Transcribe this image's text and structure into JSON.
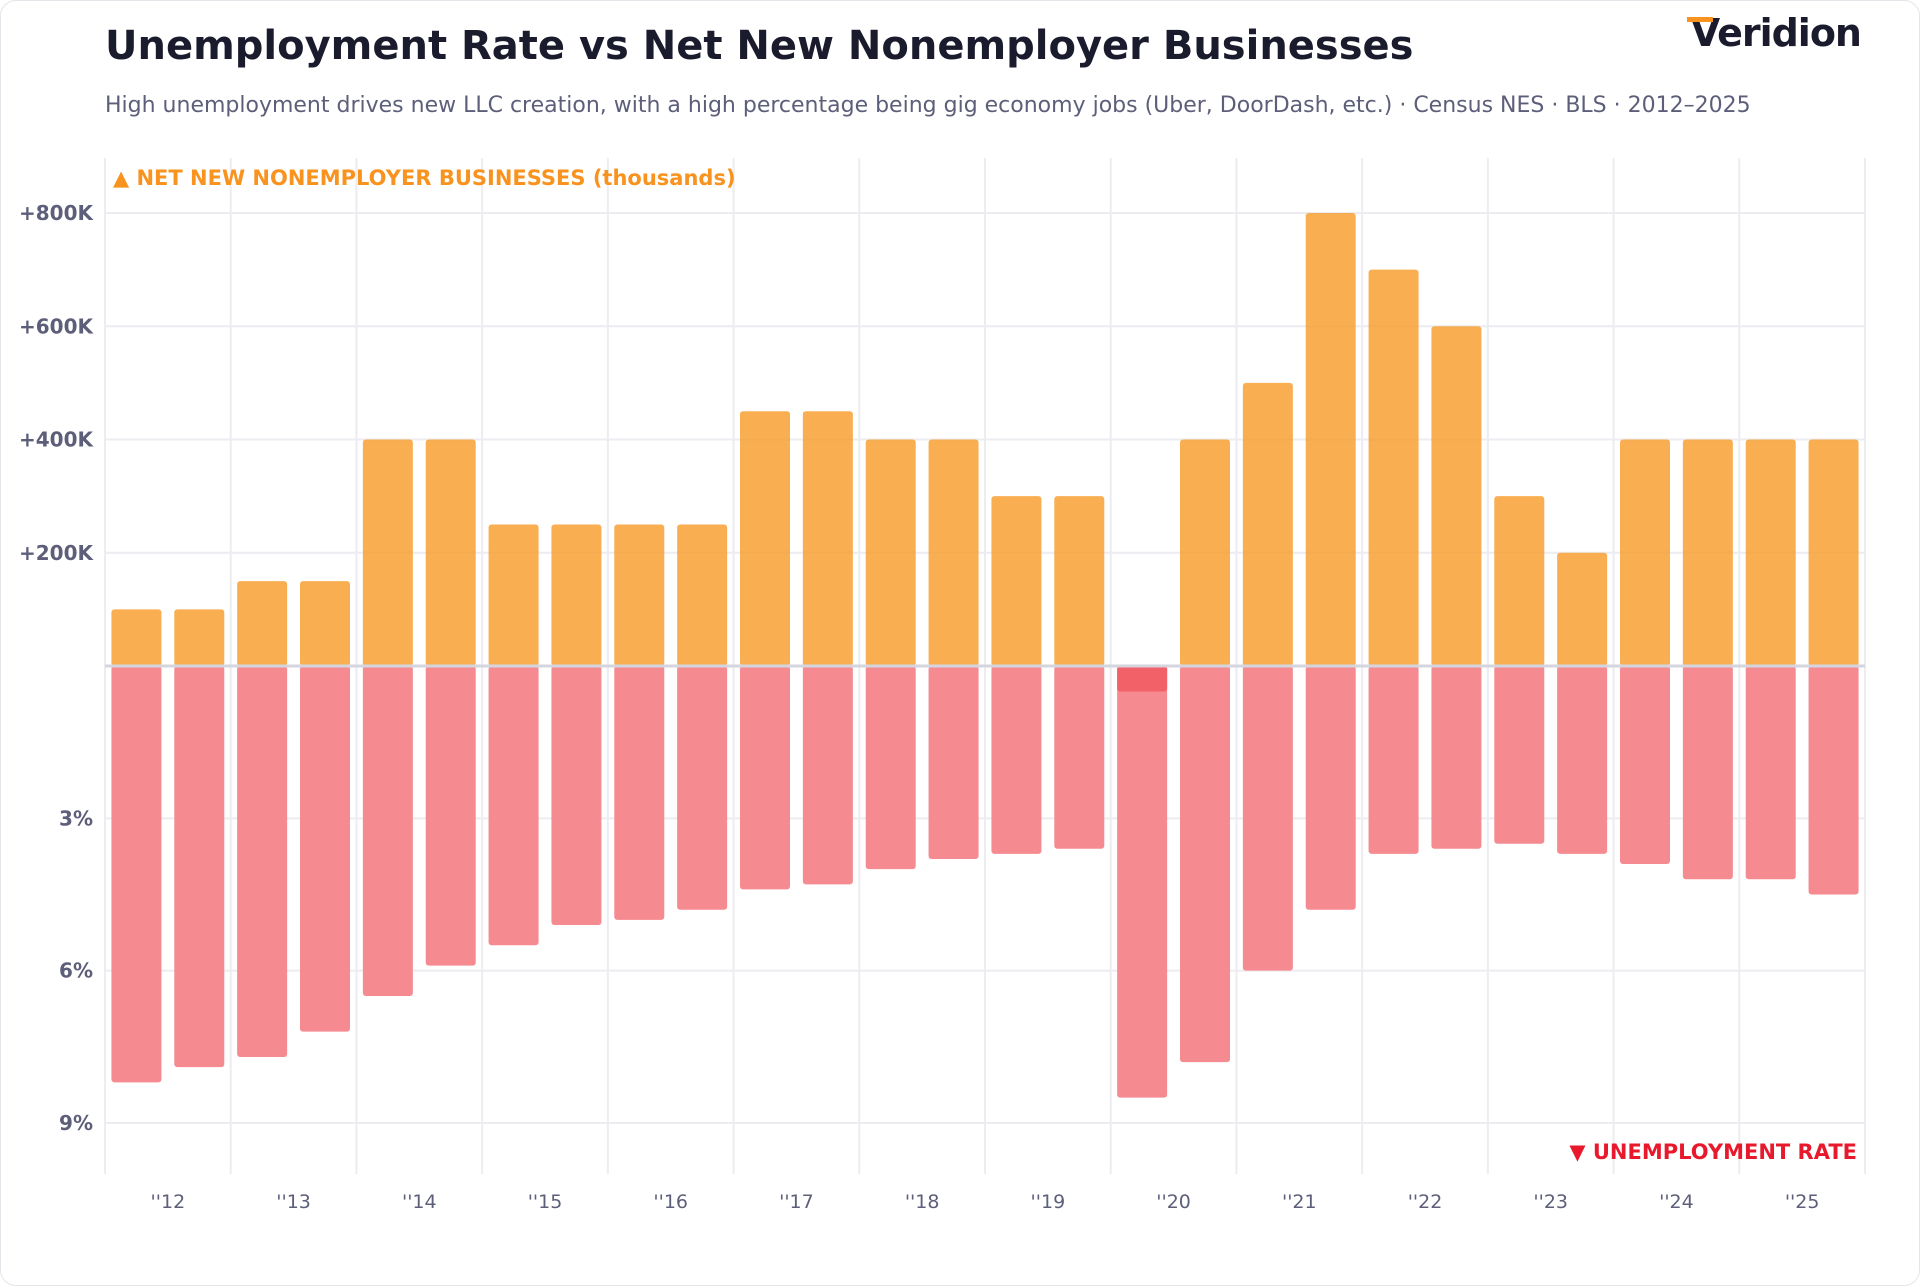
{
  "header": {
    "title": "Unemployment Rate vs Net New Nonemployer Businesses",
    "subtitle": "High unemployment drives new LLC creation, with a high percentage being gig economy jobs (Uber, DoorDash, etc.) · Census NES · BLS · 2012–2025",
    "logo": "Veridion"
  },
  "chart_data": {
    "type": "bar",
    "title": "Unemployment Rate vs Net New Nonemployer Businesses",
    "categories": [
      "2012 H1",
      "2012 H2",
      "2013 H1",
      "2013 H2",
      "2014 H1",
      "2014 H2",
      "2015 H1",
      "2015 H2",
      "2016 H1",
      "2016 H2",
      "2017 H1",
      "2017 H2",
      "2018 H1",
      "2018 H2",
      "2019 H1",
      "2019 H2",
      "2020 H1",
      "2020 H2",
      "2021 H1",
      "2021 H2",
      "2022 H1",
      "2022 H2",
      "2023 H1",
      "2023 H2",
      "2024 H1",
      "2024 H2",
      "2025 H1",
      "2025 H2"
    ],
    "x_tick_labels": [
      "''12",
      "''13",
      "''14",
      "''15",
      "''16",
      "''17",
      "''18",
      "''19",
      "''20",
      "''21",
      "''22",
      "''23",
      "''24",
      "''25"
    ],
    "series": [
      {
        "name": "▲ NET NEW NONEMPLOYER BUSINESSES (thousands)",
        "direction": "up",
        "unit": "thousands",
        "color": "#f7a032",
        "negative_color": "#f26168",
        "values": [
          100,
          100,
          150,
          150,
          400,
          400,
          250,
          250,
          250,
          250,
          450,
          450,
          400,
          400,
          300,
          300,
          -45,
          400,
          500,
          800,
          700,
          600,
          300,
          200,
          400,
          400,
          400,
          400
        ]
      },
      {
        "name": "▼ UNEMPLOYMENT RATE",
        "direction": "down",
        "unit": "%",
        "color": "#f58a90",
        "values": [
          8.2,
          7.9,
          7.7,
          7.2,
          6.5,
          5.9,
          5.5,
          5.1,
          5.0,
          4.8,
          4.4,
          4.3,
          4.0,
          3.8,
          3.7,
          3.6,
          8.5,
          7.8,
          6.0,
          4.8,
          3.7,
          3.6,
          3.5,
          3.7,
          3.9,
          4.2,
          4.2,
          4.5
        ]
      }
    ],
    "y_top": {
      "ticks": [
        "+200K",
        "+400K",
        "+600K",
        "+800K"
      ],
      "tick_values": [
        200,
        400,
        600,
        800
      ],
      "range": [
        0,
        800
      ]
    },
    "y_bottom": {
      "ticks": [
        "3%",
        "6%",
        "9%"
      ],
      "tick_values": [
        3,
        6,
        9
      ],
      "range": [
        0,
        9
      ]
    },
    "grid": true,
    "legend_placement": "top-left / bottom-right"
  }
}
